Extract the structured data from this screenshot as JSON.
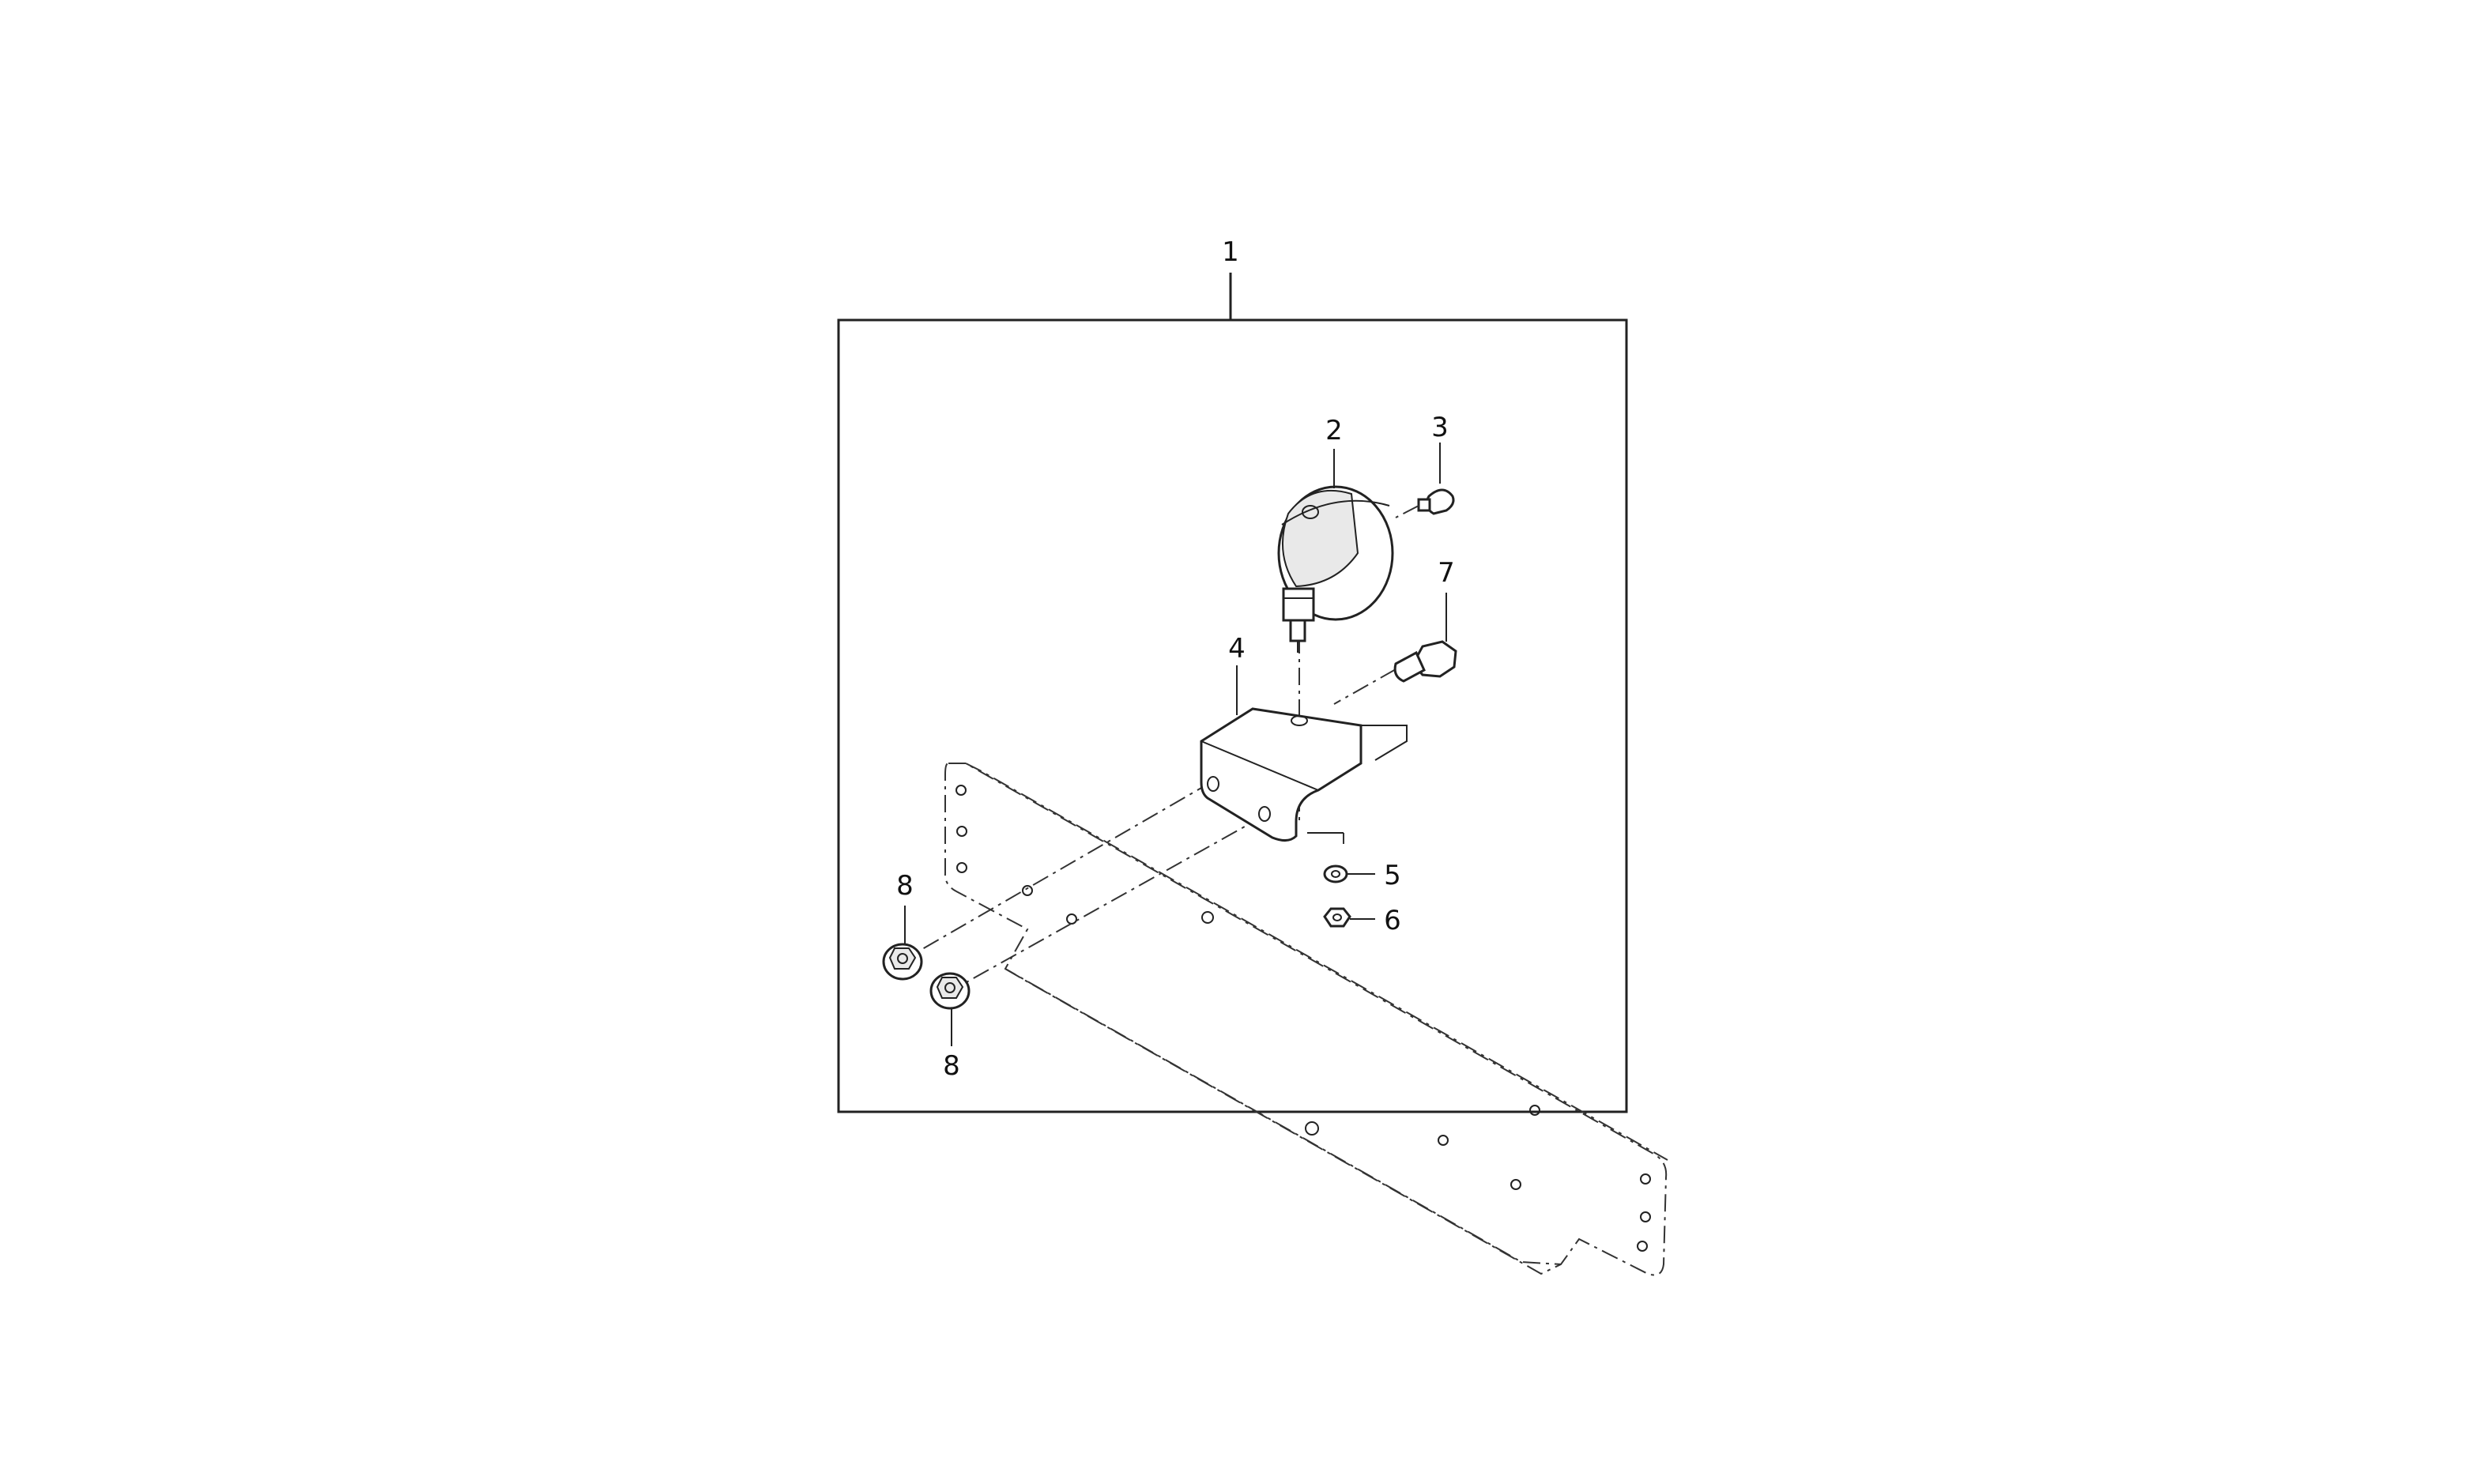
{
  "diagram": {
    "callouts": [
      {
        "id": "1",
        "text": "1"
      },
      {
        "id": "2",
        "text": "2"
      },
      {
        "id": "3",
        "text": "3"
      },
      {
        "id": "4",
        "text": "4"
      },
      {
        "id": "5",
        "text": "5"
      },
      {
        "id": "6",
        "text": "6"
      },
      {
        "id": "7",
        "text": "7"
      },
      {
        "id": "8a",
        "text": "8"
      },
      {
        "id": "8b",
        "text": "8"
      }
    ],
    "colors": {
      "line": "#222222",
      "background": "#ffffff"
    }
  }
}
